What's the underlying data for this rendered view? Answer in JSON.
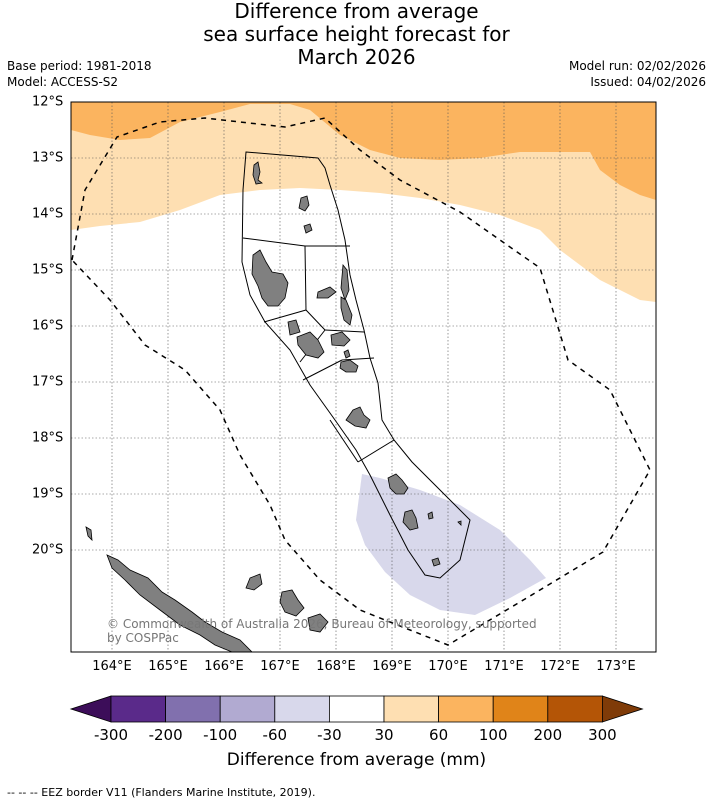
{
  "title": {
    "line1": "Difference from average",
    "line2": "sea surface height forecast for",
    "line3": "March 2026"
  },
  "meta": {
    "base_period": "Base period: 1981-2018",
    "model": "Model: ACCESS-S2",
    "model_run": "Model run: 02/02/2026",
    "issued": "Issued: 04/02/2026"
  },
  "map": {
    "lat_labels": [
      "12°S",
      "13°S",
      "14°S",
      "15°S",
      "16°S",
      "17°S",
      "18°S",
      "19°S",
      "20°S"
    ],
    "lon_labels": [
      "164°E",
      "165°E",
      "166°E",
      "167°E",
      "168°E",
      "169°E",
      "170°E",
      "171°E",
      "172°E",
      "173°E"
    ],
    "copyright": "© Commonwealth of Australia 2026, Bureau of Meteorology, supported by COSPPac"
  },
  "colorbar": {
    "ticks": [
      "-300",
      "-200",
      "-100",
      "-60",
      "-30",
      "30",
      "60",
      "100",
      "200",
      "300"
    ],
    "colors": [
      "#3c0d59",
      "#5a2a8a",
      "#8170ae",
      "#b1aad1",
      "#d8d8eb",
      "#ffffff",
      "#fedfb2",
      "#fbb45f",
      "#e08419",
      "#b45506",
      "#7f3b08"
    ],
    "label": "Difference from average (mm)"
  },
  "footer": "-- -- -- EEZ border V11 (Flanders Marine Institute, 2019)."
}
